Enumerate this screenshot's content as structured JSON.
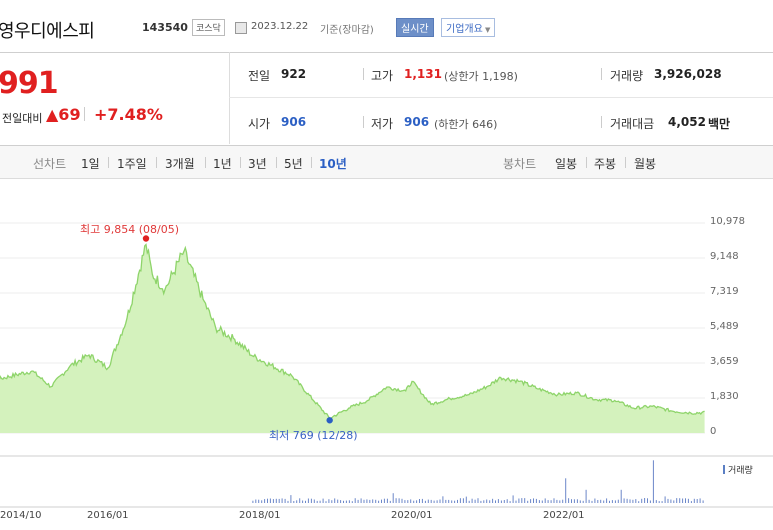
{
  "header": {
    "title": "영우디에스피",
    "code": "143540",
    "market_badge": "코스닥",
    "date": "2023.12.22",
    "basis": "기준(장마감)",
    "realtime_button": "실시간",
    "company_info_button": "기업개요"
  },
  "summary": {
    "price": "991",
    "change_label": "전일대비",
    "change_value": "▲69",
    "change_pct": "+7.48%",
    "prev_close_label": "전일",
    "prev_close": "922",
    "high_label": "고가",
    "high": "1,131",
    "upper_limit": "(상한가 1,198)",
    "volume_label": "거래량",
    "volume": "3,926,028",
    "open_label": "시가",
    "open": "906",
    "low_label": "저가",
    "low": "906",
    "lower_limit": "(하한가 646)",
    "amount_label": "거래대금",
    "amount": "4,052",
    "amount_unit": "백만"
  },
  "period_bar": {
    "line_chart_label": "선차트",
    "periods": [
      "1일",
      "1주일",
      "3개월",
      "1년",
      "3년",
      "5년",
      "10년"
    ],
    "selected_period": "10년",
    "candle_chart_label": "봉차트",
    "candle_periods": [
      "일봉",
      "주봉",
      "월봉"
    ]
  },
  "chart": {
    "high_annotation": "최고 9,854 (08/05)",
    "low_annotation": "최저 769 (12/28)",
    "volume_legend": "거래량",
    "line_color": "#8ed46a",
    "fill_color": "#d4f2bd",
    "high_marker_color": "#e02020",
    "low_marker_color": "#2b5fc4"
  },
  "chart_data": {
    "type": "area",
    "yticks": [
      "10,978",
      "9,148",
      "7,319",
      "5,489",
      "3,659",
      "1,830",
      "0"
    ],
    "xticks": [
      "2014/10",
      "2016/01",
      "2018/01",
      "2020/01",
      "2022/01"
    ],
    "ylim": [
      0,
      10978
    ],
    "x": [
      "2014/01",
      "2014/07",
      "2015/01",
      "2015/04",
      "2015/07",
      "2015/10",
      "2016/01",
      "2016/04",
      "2016/07",
      "2016/08",
      "2016/10",
      "2017/01",
      "2017/04",
      "2017/06",
      "2017/09",
      "2017/12",
      "2018/06",
      "2018/12",
      "2019/03",
      "2019/06",
      "2019/09",
      "2019/12",
      "2020/01",
      "2020/04",
      "2020/07",
      "2020/10",
      "2021/01",
      "2021/03",
      "2021/06",
      "2021/09",
      "2021/12",
      "2022/03",
      "2022/06",
      "2022/09",
      "2022/12",
      "2023/03",
      "2023/06",
      "2023/09",
      "2023/12"
    ],
    "values": [
      2950,
      2760,
      3240,
      2420,
      3500,
      4080,
      3400,
      6000,
      9854,
      8300,
      7500,
      9500,
      7000,
      5500,
      4900,
      4000,
      3000,
      769,
      1300,
      1700,
      2400,
      2200,
      2700,
      1500,
      1800,
      2000,
      2450,
      2900,
      2700,
      2300,
      2000,
      2100,
      1750,
      1700,
      1300,
      1400,
      1150,
      1050,
      1070
    ],
    "volume_series": {
      "name": "거래량",
      "x": [
        "2018/01",
        "2019/06",
        "2020/06",
        "2021/06",
        "2022/01",
        "2023/03",
        "2023/12"
      ],
      "values": [
        0.06,
        0.08,
        0.15,
        0.1,
        0.55,
        0.95,
        0.08
      ]
    }
  }
}
